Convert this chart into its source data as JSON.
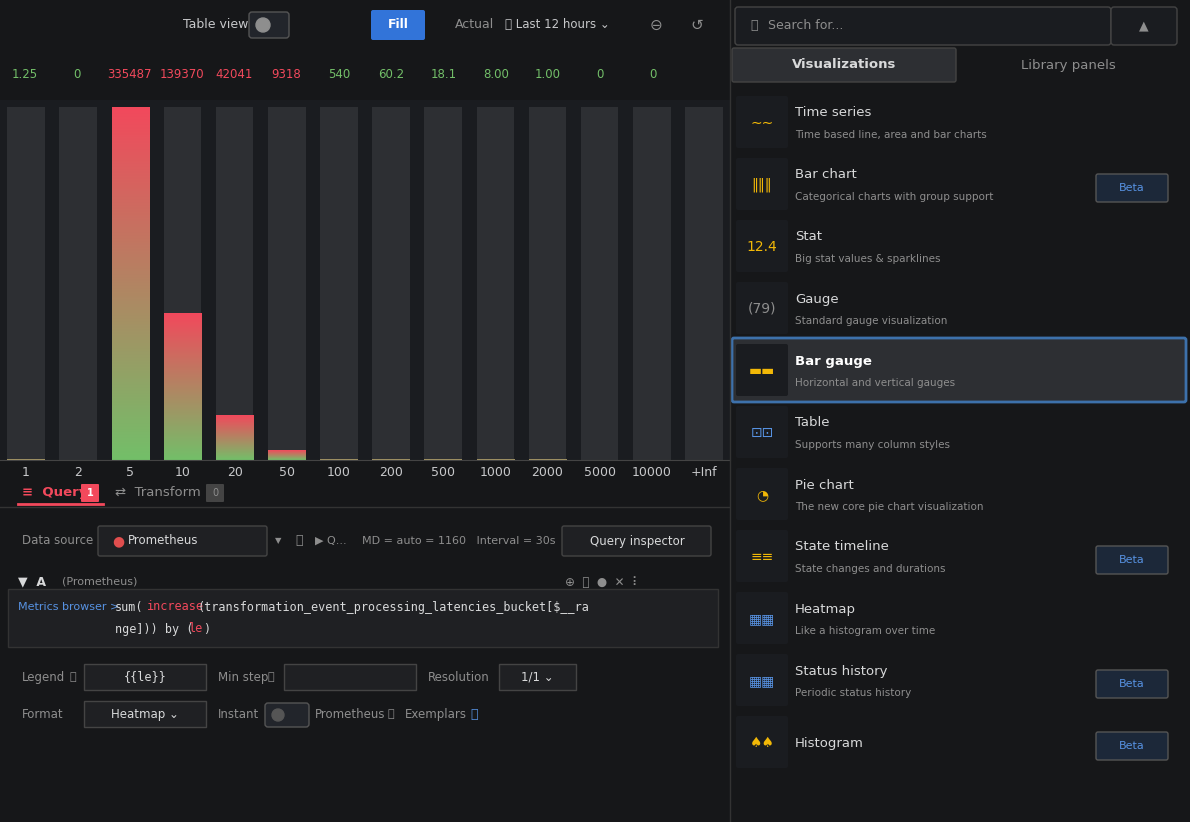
{
  "bg_color": "#161719",
  "bar_chart": {
    "categories": [
      "1",
      "2",
      "5",
      "10",
      "20",
      "50",
      "100",
      "200",
      "500",
      "1000",
      "2000",
      "5000",
      "10000",
      "+Inf"
    ],
    "values": [
      1.25,
      0,
      335487,
      139370,
      42041,
      9318,
      540,
      60.2,
      18.1,
      8.0,
      1.0,
      0,
      0,
      0
    ],
    "value_labels": [
      "1.25",
      "0",
      "335487",
      "139370",
      "42041",
      "9318",
      "540",
      "60.2",
      "18.1",
      "8.00",
      "1.00",
      "0",
      "0",
      ""
    ],
    "value_colors": [
      "#73bf69",
      "#73bf69",
      "#f2495c",
      "#f2495c",
      "#f2495c",
      "#f2495c",
      "#73bf69",
      "#73bf69",
      "#73bf69",
      "#73bf69",
      "#73bf69",
      "#73bf69",
      "#73bf69",
      "#73bf69"
    ],
    "max_value": 335487,
    "bar_color_top": "#f2495c",
    "bar_color_bottom": "#73bf69",
    "bg_bar_color": "#2d2f33"
  },
  "right_panel": {
    "search_placeholder": "Search for...",
    "tab1": "Visualizations",
    "tab2": "Library panels",
    "items": [
      {
        "icon": "timeseries",
        "title": "Time series",
        "subtitle": "Time based line, area and bar charts",
        "selected": false,
        "beta": false
      },
      {
        "icon": "barchart",
        "title": "Bar chart",
        "subtitle": "Categorical charts with group support",
        "selected": false,
        "beta": true
      },
      {
        "icon": "stat",
        "title": "Stat",
        "subtitle": "Big stat values & sparklines",
        "selected": false,
        "beta": false
      },
      {
        "icon": "gauge",
        "title": "Gauge",
        "subtitle": "Standard gauge visualization",
        "selected": false,
        "beta": false
      },
      {
        "icon": "bargauge",
        "title": "Bar gauge",
        "subtitle": "Horizontal and vertical gauges",
        "selected": true,
        "beta": false
      },
      {
        "icon": "table",
        "title": "Table",
        "subtitle": "Supports many column styles",
        "selected": false,
        "beta": false
      },
      {
        "icon": "piechart",
        "title": "Pie chart",
        "subtitle": "The new core pie chart visualization",
        "selected": false,
        "beta": false
      },
      {
        "icon": "statetimeline",
        "title": "State timeline",
        "subtitle": "State changes and durations",
        "selected": false,
        "beta": true
      },
      {
        "icon": "heatmap",
        "title": "Heatmap",
        "subtitle": "Like a histogram over time",
        "selected": false,
        "beta": false
      },
      {
        "icon": "statushistory",
        "title": "Status history",
        "subtitle": "Periodic status history",
        "selected": false,
        "beta": true
      },
      {
        "icon": "histogram",
        "title": "Histogram",
        "subtitle": "",
        "selected": false,
        "beta": true
      }
    ],
    "bg": "#111217",
    "selected_border": "#3d71ab",
    "text_primary": "#d8d9da",
    "text_secondary": "#8e8e8e"
  }
}
